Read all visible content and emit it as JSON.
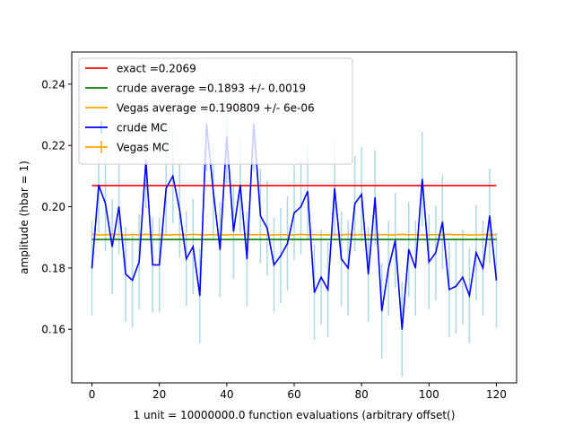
{
  "chart_data": {
    "type": "line",
    "title": "",
    "xlabel": "1 unit = 10000000.0 function evaluations (arbitrary offset()",
    "ylabel": "amplitude (hbar = 1)",
    "xlim": [
      -6,
      126
    ],
    "ylim": [
      0.1425,
      0.2505
    ],
    "x_ticks": [
      0,
      20,
      40,
      60,
      80,
      100,
      120
    ],
    "x_tick_labels": [
      "0",
      "20",
      "40",
      "60",
      "80",
      "100",
      "120"
    ],
    "y_ticks": [
      0.16,
      0.18,
      0.2,
      0.22,
      0.24
    ],
    "y_tick_labels": [
      "0.16",
      "0.18",
      "0.20",
      "0.22",
      "0.24"
    ],
    "grid": false,
    "legend_placement": "top-left",
    "legend": [
      {
        "label": "exact =0.2069",
        "color": "#ff0000",
        "style": "line"
      },
      {
        "label": "crude average =0.1893 +/- 0.0019",
        "color": "#008000",
        "style": "line"
      },
      {
        "label": "Vegas average =0.190809 +/- 6e-06",
        "color": "#ffa500",
        "style": "line"
      },
      {
        "label": "crude MC",
        "color": "#0000ff",
        "style": "errorbar"
      },
      {
        "label": "Vegas MC",
        "color": "#ffa500",
        "style": "errorbar"
      }
    ],
    "hlines": [
      {
        "name": "exact",
        "y": 0.2069,
        "color": "#ff0000"
      },
      {
        "name": "crude average",
        "y": 0.1893,
        "color": "#008000"
      }
    ],
    "series": [
      {
        "name": "crude MC",
        "color": "#0000ff",
        "errorbar_color": "#add8e6",
        "x": [
          0,
          2,
          4,
          6,
          8,
          10,
          12,
          14,
          16,
          18,
          20,
          22,
          24,
          26,
          28,
          30,
          32,
          34,
          36,
          38,
          40,
          42,
          44,
          46,
          48,
          50,
          52,
          54,
          56,
          58,
          60,
          62,
          64,
          66,
          68,
          70,
          72,
          74,
          76,
          78,
          80,
          82,
          84,
          86,
          88,
          90,
          92,
          94,
          96,
          98,
          100,
          102,
          104,
          106,
          108,
          110,
          112,
          114,
          116,
          118,
          120
        ],
        "y": [
          0.18,
          0.207,
          0.201,
          0.187,
          0.2,
          0.178,
          0.176,
          0.182,
          0.215,
          0.181,
          0.181,
          0.206,
          0.21,
          0.199,
          0.183,
          0.187,
          0.171,
          0.227,
          0.205,
          0.186,
          0.223,
          0.192,
          0.207,
          0.183,
          0.227,
          0.197,
          0.193,
          0.181,
          0.184,
          0.188,
          0.198,
          0.2,
          0.205,
          0.172,
          0.177,
          0.173,
          0.206,
          0.183,
          0.18,
          0.201,
          0.204,
          0.178,
          0.203,
          0.166,
          0.18,
          0.189,
          0.16,
          0.186,
          0.18,
          0.209,
          0.182,
          0.185,
          0.195,
          0.173,
          0.174,
          0.177,
          0.171,
          0.185,
          0.18,
          0.197,
          0.176
        ],
        "yerr": 0.0155
      },
      {
        "name": "Vegas MC",
        "color": "#ffa500",
        "x": [
          0,
          2,
          4,
          6,
          8,
          10,
          12,
          14,
          16,
          18,
          20,
          22,
          24,
          26,
          28,
          30,
          32,
          34,
          36,
          38,
          40,
          42,
          44,
          46,
          48,
          50,
          52,
          54,
          56,
          58,
          60,
          62,
          64,
          66,
          68,
          70,
          72,
          74,
          76,
          78,
          80,
          82,
          84,
          86,
          88,
          90,
          92,
          94,
          96,
          98,
          100,
          102,
          104,
          106,
          108,
          110,
          112,
          114,
          116,
          118,
          120
        ],
        "y": [
          0.191,
          0.1908,
          0.1908,
          0.191,
          0.1909,
          0.1908,
          0.1909,
          0.1908,
          0.191,
          0.1908,
          0.1909,
          0.1908,
          0.1908,
          0.1909,
          0.1908,
          0.191,
          0.1908,
          0.1908,
          0.1909,
          0.1908,
          0.1908,
          0.1909,
          0.1908,
          0.191,
          0.1908,
          0.1909,
          0.1908,
          0.1908,
          0.1909,
          0.1908,
          0.1908,
          0.191,
          0.1908,
          0.1909,
          0.1908,
          0.1908,
          0.1909,
          0.1908,
          0.191,
          0.1908,
          0.1909,
          0.1908,
          0.1908,
          0.1909,
          0.1908,
          0.1908,
          0.191,
          0.1908,
          0.1909,
          0.1908,
          0.1908,
          0.1909,
          0.1908,
          0.191,
          0.1908,
          0.1909,
          0.1908,
          0.1908,
          0.1909,
          0.1908,
          0.1909
        ]
      }
    ]
  }
}
